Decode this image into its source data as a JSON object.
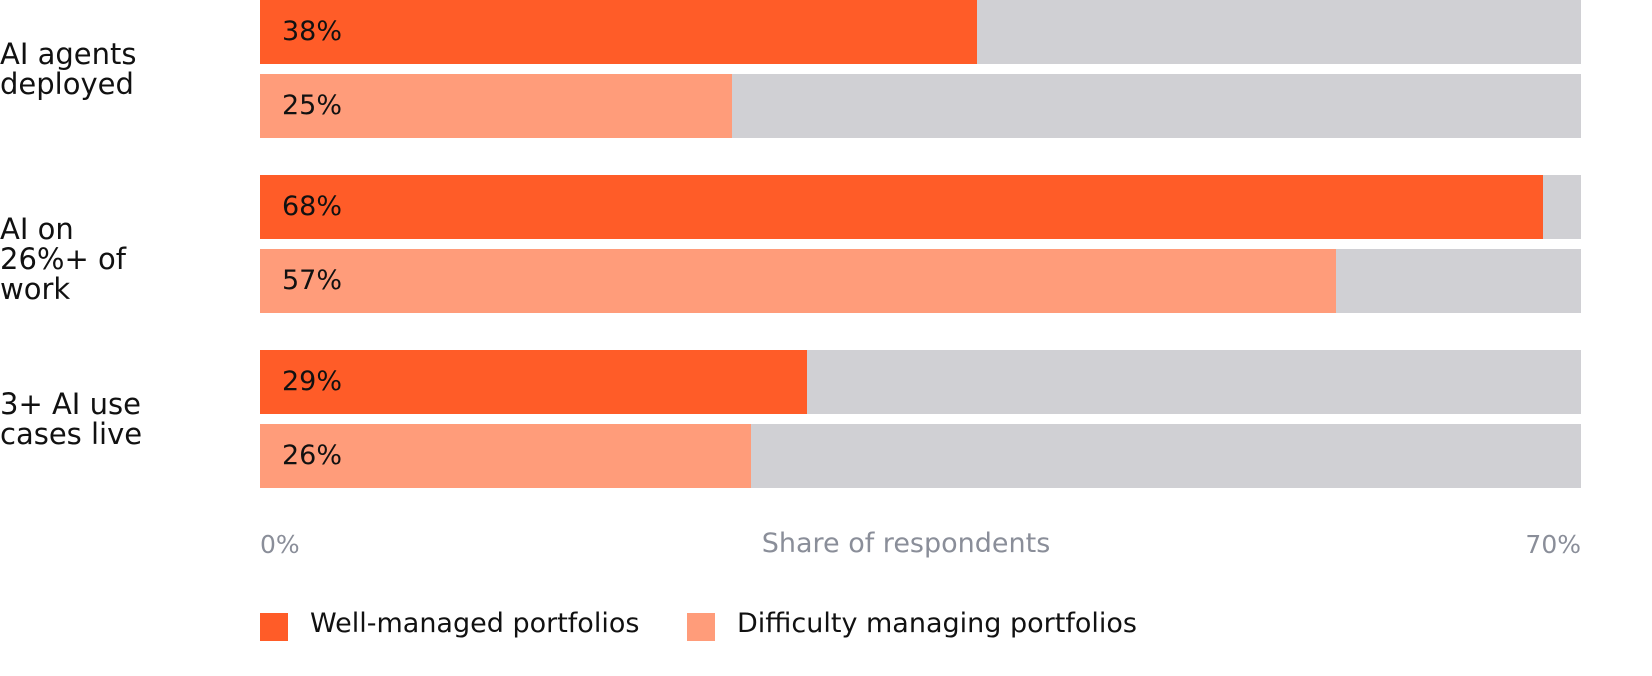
{
  "chart_data": {
    "type": "bar",
    "orientation": "horizontal",
    "categories": [
      "AI agents deployed",
      "AI on 26%+ of work",
      "3+ AI use cases live"
    ],
    "series": [
      {
        "name": "Well-managed portfolios",
        "color": "#ff5c28",
        "values": [
          38,
          68,
          29
        ],
        "value_labels": [
          "38%",
          "68%",
          "29%"
        ]
      },
      {
        "name": "Difficulty managing portfolios",
        "color": "#ff9c7a",
        "values": [
          25,
          57,
          26
        ],
        "value_labels": [
          "25%",
          "57%",
          "26%"
        ]
      }
    ],
    "xlim": [
      0,
      70
    ],
    "xticks": [
      {
        "value": 0,
        "label": "0%"
      },
      {
        "value": 70,
        "label": "70%"
      }
    ],
    "x_axis_label": "Share of respondents",
    "track_color": "#d0d0d4",
    "legend": "bottom-left"
  }
}
